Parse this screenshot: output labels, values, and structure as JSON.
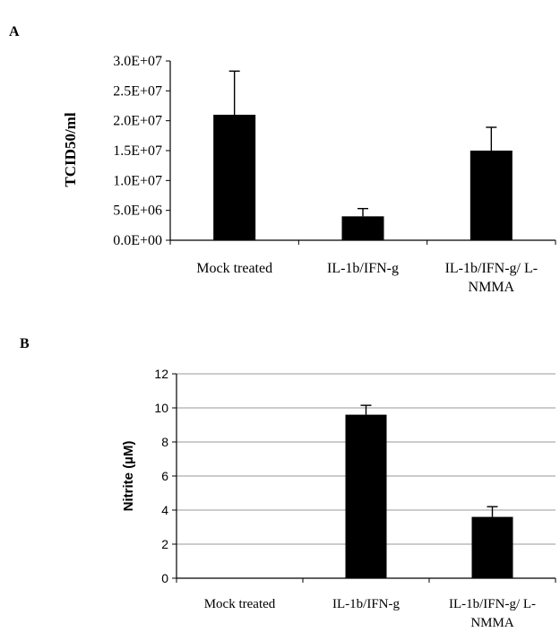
{
  "chart_data": [
    {
      "panel_label": "A",
      "type": "bar",
      "ylabel": "TCID50/ml",
      "categories": [
        [
          "Mock treated"
        ],
        [
          "IL-1b/IFN-g"
        ],
        [
          "IL-1b/IFN-g/ L-",
          "NMMA"
        ]
      ],
      "values": [
        21000000,
        4000000,
        15000000
      ],
      "errors": [
        7300000,
        1300000,
        3900000
      ],
      "ylim": [
        0,
        30000000
      ],
      "yticks": [
        0,
        5000000,
        10000000,
        15000000,
        20000000,
        25000000,
        30000000
      ],
      "ytick_labels": [
        "0.0E+00",
        "5.0E+06",
        "1.0E+07",
        "1.5E+07",
        "2.0E+07",
        "2.5E+07",
        "3.0E+07"
      ],
      "grid": false,
      "bar_color": "#000000"
    },
    {
      "panel_label": "B",
      "type": "bar",
      "ylabel": "Nitrite (µM)",
      "categories": [
        [
          "Mock treated"
        ],
        [
          "IL-1b/IFN-g"
        ],
        [
          "IL-1b/IFN-g/ L-",
          "NMMA"
        ]
      ],
      "values": [
        0,
        9.6,
        3.6
      ],
      "errors": [
        0,
        0.55,
        0.6
      ],
      "ylim": [
        0,
        12
      ],
      "yticks": [
        0,
        2,
        4,
        6,
        8,
        10,
        12
      ],
      "ytick_labels": [
        "0",
        "2",
        "4",
        "6",
        "8",
        "10",
        "12"
      ],
      "grid": true,
      "bar_color": "#000000"
    }
  ]
}
